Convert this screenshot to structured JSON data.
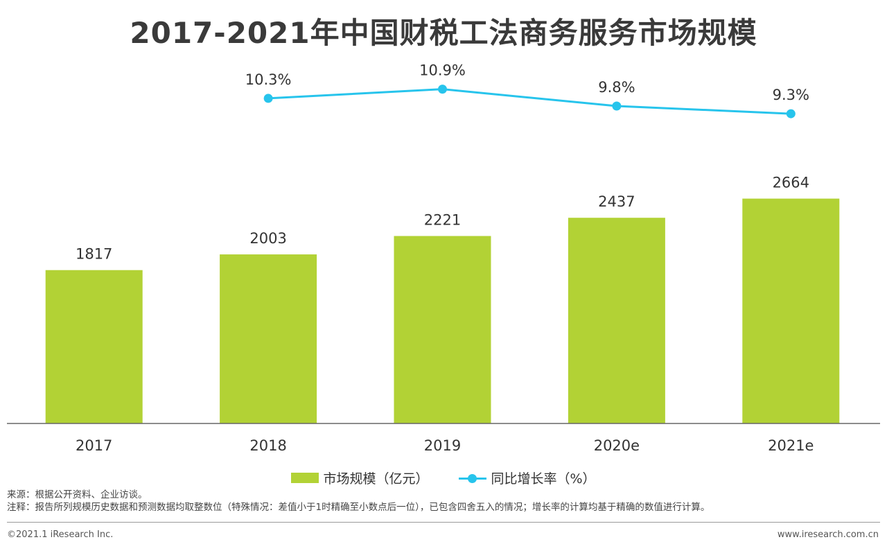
{
  "chart_data": {
    "type": "bar",
    "title": "2017-2021年中国财税工法商务服务市场规模",
    "categories": [
      "2017",
      "2018",
      "2019",
      "2020e",
      "2021e"
    ],
    "series": [
      {
        "name": "市场规模（亿元）",
        "type": "bar",
        "values": [
          1817,
          2003,
          2221,
          2437,
          2664
        ],
        "labels": [
          "1817",
          "2003",
          "2221",
          "2437",
          "2664"
        ]
      },
      {
        "name": "同比增长率（%）",
        "type": "line",
        "values": [
          null,
          10.3,
          10.9,
          9.8,
          9.3
        ],
        "labels": [
          "",
          "10.3%",
          "10.9%",
          "9.8%",
          "9.3%"
        ]
      }
    ],
    "bar_ylim": [
      0,
      2800
    ],
    "line_ylim": [
      0,
      14
    ],
    "grid": false,
    "legend_position": "bottom",
    "colors": {
      "bar": "#b2d235",
      "line": "#27c4ec",
      "axis": "#666666"
    }
  },
  "legend": {
    "bar_label": "市场规模（亿元）",
    "line_label": "同比增长率（%）"
  },
  "notes": {
    "source": "来源：根据公开资料、企业访谈。",
    "remark": "注释：报告所列规模历史数据和预测数据均取整数位（特殊情况：差值小于1时精确至小数点后一位），已包含四舍五入的情况；增长率的计算均基于精确的数值进行计算。"
  },
  "footer": {
    "copyright": "©2021.1 iResearch Inc.",
    "website": "www.iresearch.com.cn"
  }
}
